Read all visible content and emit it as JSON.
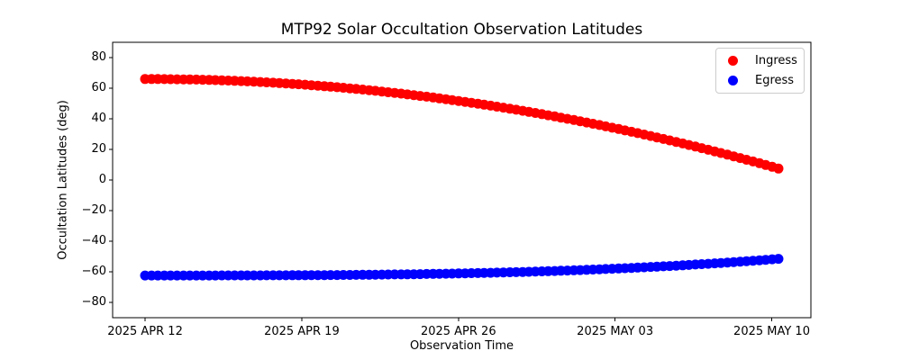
{
  "figure": {
    "title": "MTP92 Solar Occultation Observation Latitudes",
    "background_color": "#ffffff",
    "spine_color": "#000000"
  },
  "chart_data": {
    "type": "scatter",
    "title": "MTP92 Solar Occultation Observation Latitudes",
    "xlabel": "Observation Time",
    "ylabel": "Occultation Latitudes (deg)",
    "grid": false,
    "legend_position": "upper right",
    "marker": "circle",
    "marker_radius_px": 5.5,
    "xlim_days": [
      -1.45,
      29.75
    ],
    "ylim": [
      -90,
      90
    ],
    "x_tick_days": [
      0,
      7,
      14,
      21,
      28
    ],
    "x_tick_labels": [
      "2025 APR 12",
      "2025 APR 19",
      "2025 APR 26",
      "2025 MAY 03",
      "2025 MAY 10"
    ],
    "y_tick_values": [
      80,
      60,
      40,
      20,
      0,
      -20,
      -40,
      -60,
      -80
    ],
    "y_tick_labels": [
      "80",
      "60",
      "40",
      "20",
      "0",
      "−20",
      "−40",
      "−60",
      "−80"
    ],
    "x_days": [
      0,
      0.29,
      0.57,
      0.86,
      1.14,
      1.43,
      1.72,
      2.0,
      2.29,
      2.57,
      2.86,
      3.14,
      3.43,
      3.72,
      4.0,
      4.29,
      4.57,
      4.86,
      5.15,
      5.43,
      5.72,
      6.0,
      6.29,
      6.58,
      6.86,
      7.15,
      7.43,
      7.72,
      8.01,
      8.29,
      8.58,
      8.86,
      9.15,
      9.43,
      9.72,
      10.01,
      10.29,
      10.58,
      10.86,
      11.15,
      11.44,
      11.72,
      12.01,
      12.29,
      12.58,
      12.87,
      13.15,
      13.44,
      13.72,
      14.01,
      14.3,
      14.58,
      14.87,
      15.15,
      15.44,
      15.72,
      16.01,
      16.3,
      16.58,
      16.87,
      17.15,
      17.44,
      17.73,
      18.01,
      18.3,
      18.58,
      18.87,
      19.16,
      19.44,
      19.73,
      20.01,
      20.3,
      20.58,
      20.87,
      21.16,
      21.44,
      21.73,
      22.01,
      22.3,
      22.59,
      22.87,
      23.16,
      23.44,
      23.73,
      24.02,
      24.3,
      24.59,
      24.87,
      25.16,
      25.45,
      25.73,
      26.02,
      26.3,
      26.59,
      26.87,
      27.16,
      27.45,
      27.73,
      28.02,
      28.3
    ],
    "series": [
      {
        "name": "Ingress",
        "color": "#ff0000",
        "y": [
          66.0,
          65.99,
          65.98,
          65.95,
          65.9,
          65.85,
          65.79,
          65.71,
          65.62,
          65.52,
          65.4,
          65.28,
          65.14,
          64.99,
          64.83,
          64.66,
          64.47,
          64.28,
          64.07,
          63.85,
          63.61,
          63.37,
          63.11,
          62.84,
          62.56,
          62.27,
          61.97,
          61.65,
          61.32,
          60.98,
          60.63,
          60.27,
          59.89,
          59.5,
          59.1,
          58.69,
          58.27,
          57.83,
          57.38,
          56.92,
          56.45,
          55.97,
          55.47,
          54.97,
          54.45,
          53.92,
          53.37,
          52.82,
          52.25,
          51.67,
          51.08,
          50.48,
          49.86,
          49.24,
          48.6,
          47.95,
          47.29,
          46.61,
          45.93,
          45.23,
          44.52,
          43.8,
          43.06,
          42.32,
          41.56,
          40.79,
          40.01,
          39.22,
          38.41,
          37.6,
          36.76,
          35.92,
          35.07,
          34.2,
          33.33,
          32.44,
          31.54,
          30.62,
          29.7,
          28.76,
          27.81,
          26.85,
          25.87,
          24.89,
          23.89,
          22.88,
          21.86,
          20.83,
          19.78,
          18.72,
          17.65,
          16.57,
          15.48,
          14.37,
          13.26,
          12.12,
          10.98,
          9.83,
          8.66,
          7.49
        ]
      },
      {
        "name": "Egress",
        "color": "#0000ff",
        "y": [
          -62.4,
          -62.4,
          -62.4,
          -62.4,
          -62.4,
          -62.4,
          -62.4,
          -62.4,
          -62.39,
          -62.39,
          -62.39,
          -62.39,
          -62.38,
          -62.38,
          -62.37,
          -62.36,
          -62.35,
          -62.34,
          -62.33,
          -62.32,
          -62.31,
          -62.3,
          -62.28,
          -62.26,
          -62.24,
          -62.22,
          -62.2,
          -62.18,
          -62.15,
          -62.13,
          -62.1,
          -62.07,
          -62.03,
          -62.0,
          -61.96,
          -61.92,
          -61.88,
          -61.83,
          -61.78,
          -61.73,
          -61.68,
          -61.63,
          -61.57,
          -61.51,
          -61.44,
          -61.38,
          -61.31,
          -61.24,
          -61.16,
          -61.08,
          -61.0,
          -60.91,
          -60.82,
          -60.73,
          -60.63,
          -60.53,
          -60.43,
          -60.32,
          -60.21,
          -60.1,
          -59.98,
          -59.85,
          -59.73,
          -59.59,
          -59.46,
          -59.32,
          -59.17,
          -59.02,
          -58.87,
          -58.71,
          -58.54,
          -58.37,
          -58.2,
          -58.02,
          -57.83,
          -57.64,
          -57.45,
          -57.25,
          -57.04,
          -56.83,
          -56.66,
          -56.44,
          -56.21,
          -55.98,
          -55.75,
          -55.51,
          -55.26,
          -55.01,
          -54.75,
          -54.49,
          -54.22,
          -53.94,
          -53.66,
          -53.38,
          -53.08,
          -52.78,
          -52.47,
          -52.16,
          -51.84,
          -51.51
        ]
      }
    ]
  }
}
